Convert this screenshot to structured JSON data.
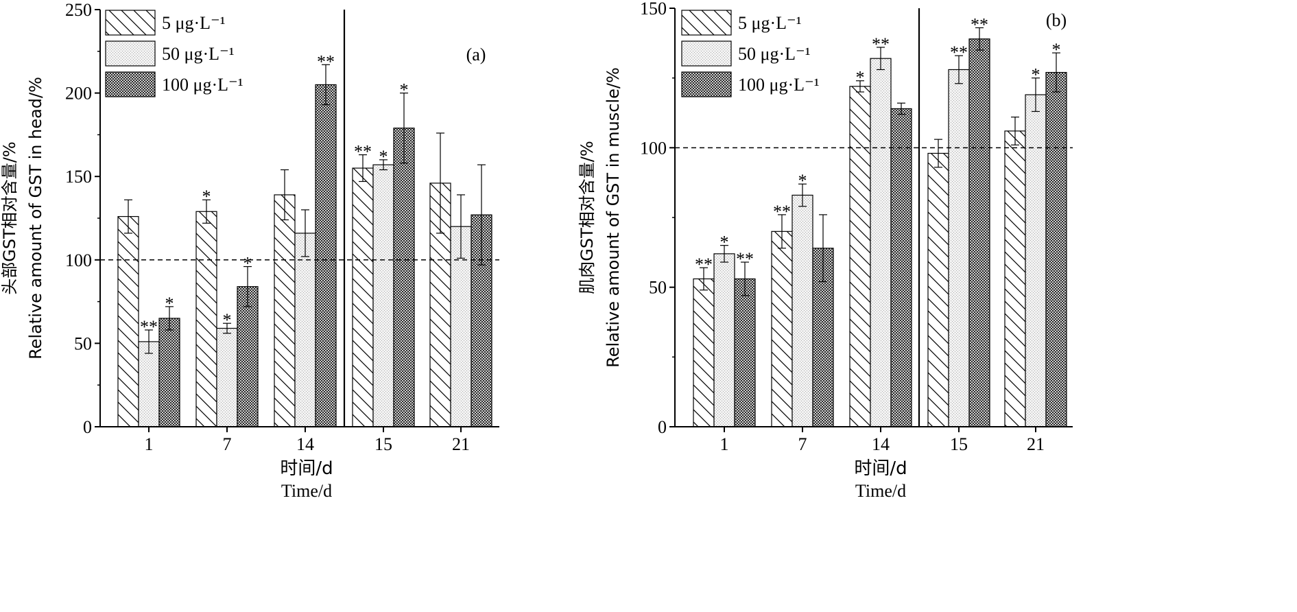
{
  "legend": [
    {
      "label": "5 μg·L⁻¹",
      "pattern": "hatch"
    },
    {
      "label": "50 μg·L⁻¹",
      "pattern": "dots"
    },
    {
      "label": "100 μg·L⁻¹",
      "pattern": "check"
    }
  ],
  "chart_data": [
    {
      "type": "bar",
      "panel_label": "(a)",
      "ylabel_cn": "头部GST相对含量/%",
      "ylabel_en": "Relative amount of GST in head/%",
      "xlabel_cn": "时间/d",
      "xlabel_en": "Time/d",
      "ylim": [
        0,
        250
      ],
      "yticks": [
        0,
        50,
        100,
        150,
        200,
        250
      ],
      "reference_line": 100,
      "separator_after_category": "14",
      "categories": [
        "1",
        "7",
        "14",
        "15",
        "21"
      ],
      "series": [
        {
          "name": "5 μg·L⁻¹",
          "values": [
            126,
            129,
            139,
            155,
            146
          ],
          "errors": [
            10,
            7,
            15,
            8,
            30
          ],
          "stars": [
            "",
            "*",
            "",
            "**",
            ""
          ]
        },
        {
          "name": "50 μg·L⁻¹",
          "values": [
            51,
            59,
            116,
            157,
            120
          ],
          "errors": [
            7,
            3,
            14,
            3,
            19
          ],
          "stars": [
            "**",
            "*",
            "",
            "*",
            ""
          ]
        },
        {
          "name": "100 μg·L⁻¹",
          "values": [
            65,
            84,
            205,
            179,
            127
          ],
          "errors": [
            7,
            12,
            12,
            21,
            30
          ],
          "stars": [
            "*",
            "*",
            "**",
            "*",
            ""
          ]
        }
      ]
    },
    {
      "type": "bar",
      "panel_label": "(b)",
      "ylabel_cn": "肌肉GST相对含量/%",
      "ylabel_en": "Relative amount of GST in muscle/%",
      "xlabel_cn": "时间/d",
      "xlabel_en": "Time/d",
      "ylim": [
        0,
        150
      ],
      "yticks": [
        0,
        50,
        100,
        150
      ],
      "reference_line": 100,
      "separator_after_category": "14",
      "categories": [
        "1",
        "7",
        "14",
        "15",
        "21"
      ],
      "series": [
        {
          "name": "5 μg·L⁻¹",
          "values": [
            53,
            70,
            122,
            98,
            106
          ],
          "errors": [
            4,
            6,
            2,
            5,
            5
          ],
          "stars": [
            "**",
            "**",
            "*",
            "",
            ""
          ]
        },
        {
          "name": "50 μg·L⁻¹",
          "values": [
            62,
            83,
            132,
            128,
            119
          ],
          "errors": [
            3,
            4,
            4,
            5,
            6
          ],
          "stars": [
            "*",
            "*",
            "**",
            "**",
            "*"
          ]
        },
        {
          "name": "100 μg·L⁻¹",
          "values": [
            53,
            64,
            114,
            139,
            127
          ],
          "errors": [
            6,
            12,
            2,
            4,
            7
          ],
          "stars": [
            "**",
            "",
            "",
            "**",
            "*"
          ]
        }
      ]
    }
  ]
}
